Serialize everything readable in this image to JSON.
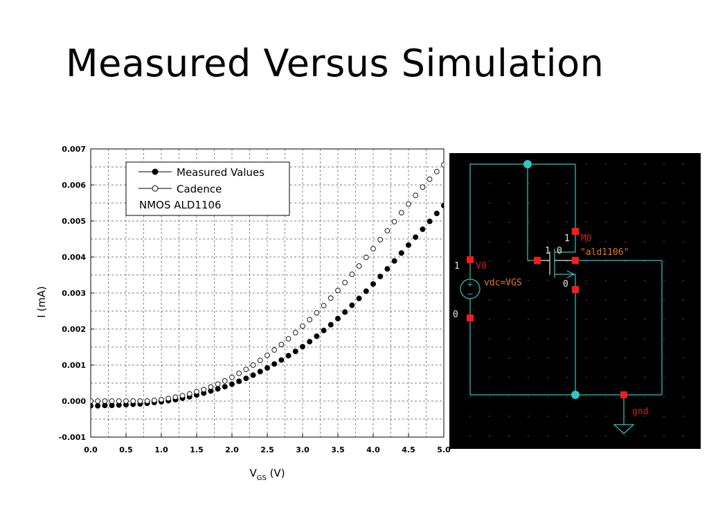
{
  "slide": {
    "title": "Measured Versus Simulation"
  },
  "chart_data": {
    "type": "scatter",
    "xlabel_main": "V",
    "xlabel_sub": "GS",
    "xlabel_unit": " (V)",
    "ylabel": "I (mA)",
    "xlim": [
      0.0,
      5.0
    ],
    "ylim": [
      -0.001,
      0.007
    ],
    "x_ticks": [
      "0.0",
      "0.5",
      "1.0",
      "1.5",
      "2.0",
      "2.5",
      "3.0",
      "3.5",
      "4.0",
      "4.5",
      "5.0"
    ],
    "y_ticks": [
      "-0.001",
      "0.000",
      "0.001",
      "0.002",
      "0.003",
      "0.004",
      "0.005",
      "0.006",
      "0.007"
    ],
    "grid": true,
    "legend": {
      "placement": "top-left",
      "entries": [
        "Measured Values",
        "Cadence"
      ],
      "note": "NMOS ALD1106"
    },
    "series": [
      {
        "name": "Measured Values",
        "marker": "filled-circle",
        "x": [
          0.0,
          0.1,
          0.2,
          0.3,
          0.4,
          0.5,
          0.6,
          0.7,
          0.8,
          0.9,
          1.0,
          1.1,
          1.2,
          1.3,
          1.4,
          1.5,
          1.6,
          1.7,
          1.8,
          1.9,
          2.0,
          2.1,
          2.2,
          2.3,
          2.4,
          2.5,
          2.6,
          2.7,
          2.8,
          2.9,
          3.0,
          3.1,
          3.2,
          3.3,
          3.4,
          3.5,
          3.6,
          3.7,
          3.8,
          3.9,
          4.0,
          4.1,
          4.2,
          4.3,
          4.4,
          4.5,
          4.6,
          4.7,
          4.8,
          4.9,
          5.0
        ],
        "y": [
          -0.00013,
          -0.00013,
          -0.00012,
          -0.00012,
          -0.00011,
          -0.0001,
          -9e-05,
          -8e-05,
          -6e-05,
          -4e-05,
          -2e-05,
          1e-05,
          4e-05,
          8e-05,
          0.00012,
          0.00017,
          0.00022,
          0.00028,
          0.00034,
          0.0004,
          0.00047,
          0.00055,
          0.00063,
          0.00072,
          0.00082,
          0.00092,
          0.00103,
          0.00114,
          0.00126,
          0.00138,
          0.00151,
          0.00165,
          0.0018,
          0.00196,
          0.00212,
          0.00229,
          0.00247,
          0.00266,
          0.00285,
          0.00305,
          0.00325,
          0.00346,
          0.00367,
          0.00389,
          0.00411,
          0.00433,
          0.00455,
          0.00477,
          0.00499,
          0.00521,
          0.00543
        ]
      },
      {
        "name": "Cadence",
        "marker": "open-circle",
        "x": [
          0.0,
          0.1,
          0.2,
          0.3,
          0.4,
          0.5,
          0.6,
          0.7,
          0.8,
          0.9,
          1.0,
          1.1,
          1.2,
          1.3,
          1.4,
          1.5,
          1.6,
          1.7,
          1.8,
          1.9,
          2.0,
          2.1,
          2.2,
          2.3,
          2.4,
          2.5,
          2.6,
          2.7,
          2.8,
          2.9,
          3.0,
          3.1,
          3.2,
          3.3,
          3.4,
          3.5,
          3.6,
          3.7,
          3.8,
          3.9,
          4.0,
          4.1,
          4.2,
          4.3,
          4.4,
          4.5,
          4.6,
          4.7,
          4.8,
          4.9,
          5.0
        ],
        "y": [
          0.0,
          0.0,
          0.0,
          0.0,
          0.0,
          0.0,
          0.0,
          0.0,
          0.0,
          2e-05,
          4e-05,
          7e-05,
          0.00011,
          0.00015,
          0.0002,
          0.00026,
          0.00032,
          0.00039,
          0.00047,
          0.00056,
          0.00066,
          0.00077,
          0.00088,
          0.001,
          0.00113,
          0.00127,
          0.00142,
          0.00157,
          0.00173,
          0.0019,
          0.00208,
          0.00226,
          0.00245,
          0.00265,
          0.00286,
          0.00307,
          0.00329,
          0.00352,
          0.00375,
          0.00399,
          0.00423,
          0.00448,
          0.00473,
          0.00498,
          0.00523,
          0.00547,
          0.00571,
          0.00594,
          0.00616,
          0.00637,
          0.00656
        ]
      }
    ]
  },
  "schematic": {
    "background": "#000000",
    "wire_color": "#2fc7c7",
    "pin_color": "#ff1a1a",
    "source": {
      "node_top": "1",
      "label": "V0",
      "param": "vdc=VGS",
      "node_bottom": "0"
    },
    "transistor": {
      "drain_node": "1",
      "label": "M0",
      "model": "\"ald1106\"",
      "gate_node_left": "1",
      "gate_node_right": "0",
      "source_node": "0"
    },
    "ground_label": "gnd"
  }
}
